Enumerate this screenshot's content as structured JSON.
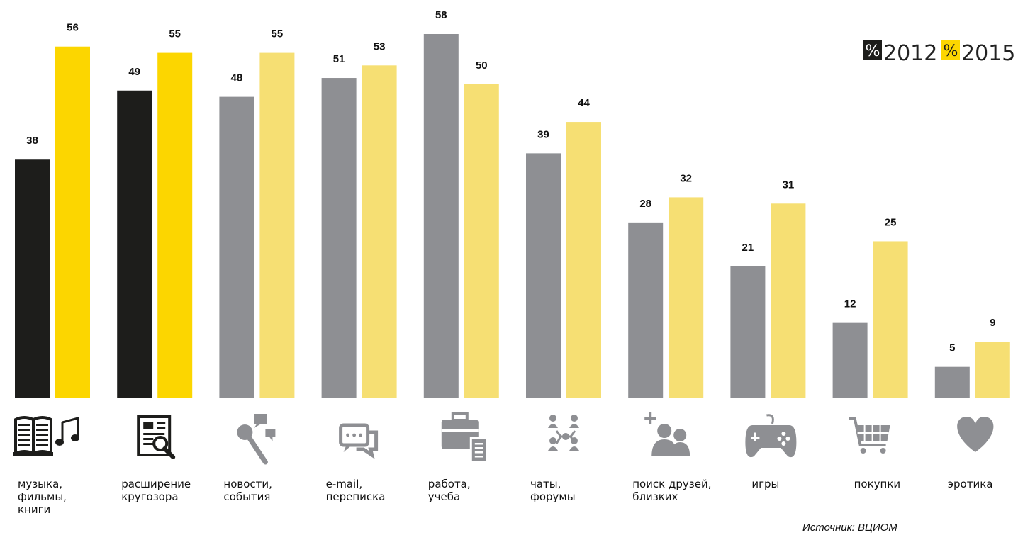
{
  "chart_data": {
    "type": "bar",
    "categories": [
      {
        "label": [
          "музыка,",
          "фильмы,",
          "книги"
        ],
        "icon": "book-music-icon"
      },
      {
        "label": [
          "расширение",
          "кругозора"
        ],
        "icon": "newspaper-magnifier-icon"
      },
      {
        "label": [
          "новости,",
          "события"
        ],
        "icon": "microphone-speech-icon"
      },
      {
        "label": [
          "e-mail,",
          "переписка"
        ],
        "icon": "chat-bubbles-icon"
      },
      {
        "label": [
          "работа,",
          "учеба"
        ],
        "icon": "briefcase-document-icon"
      },
      {
        "label": [
          "чаты,",
          "форумы"
        ],
        "icon": "people-network-icon"
      },
      {
        "label": [
          "поиск друзей,",
          "близких"
        ],
        "icon": "add-friends-icon"
      },
      {
        "label": [
          "игры"
        ],
        "icon": "gamepad-icon"
      },
      {
        "label": [
          "покупки"
        ],
        "icon": "shopping-cart-icon"
      },
      {
        "label": [
          "эротика"
        ],
        "icon": "heart-icon"
      }
    ],
    "series": [
      {
        "name": "2012",
        "values": [
          38,
          49,
          48,
          51,
          58,
          39,
          28,
          21,
          12,
          5
        ]
      },
      {
        "name": "2015",
        "values": [
          56,
          55,
          55,
          53,
          50,
          44,
          32,
          31,
          25,
          9
        ]
      }
    ],
    "highlight_count": 2,
    "colors": {
      "2012_highlight": "#1d1d1b",
      "2015_highlight": "#fcd600",
      "2012_regular": "#8e8f93",
      "2015_regular": "#f6df73",
      "icon": "#8e8f93",
      "icon_highlight": "#1d1d1b"
    },
    "legend": {
      "position": "top-right",
      "symbol": "%",
      "items": [
        {
          "label": "2012",
          "color": "#1d1d1b"
        },
        {
          "label": "2015",
          "color": "#fcd600"
        }
      ]
    },
    "ylim": [
      0,
      60
    ],
    "grid": false
  },
  "source_text": "Источник: ВЦИОМ"
}
